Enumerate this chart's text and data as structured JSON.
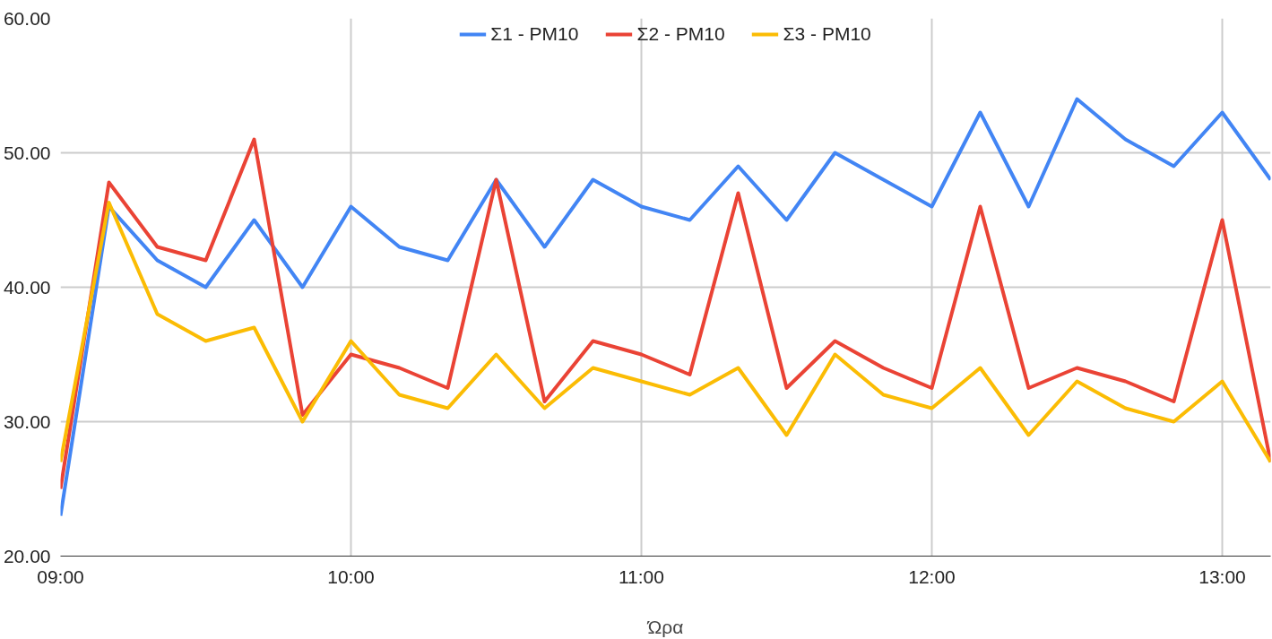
{
  "chart_data": {
    "type": "line",
    "xlabel": "Ώρα",
    "x": [
      9,
      9.1667,
      9.3333,
      9.5,
      9.6667,
      9.8333,
      10,
      10.1667,
      10.3333,
      10.5,
      10.6667,
      10.8333,
      11,
      11.1667,
      11.3333,
      11.5,
      11.6667,
      11.8333,
      12,
      12.1667,
      12.3333,
      12.5,
      12.6667,
      12.8333,
      13,
      13.1667
    ],
    "series": [
      {
        "name": "Σ1 - PM10",
        "color": "#4285f4",
        "values": [
          23,
          46,
          42,
          40,
          45,
          40,
          46,
          43,
          42,
          48,
          43,
          48,
          46,
          45,
          49,
          45,
          50,
          48,
          46,
          53,
          46,
          54,
          51,
          49,
          53,
          48
        ]
      },
      {
        "name": "Σ2 - PM10",
        "color": "#ea4335",
        "values": [
          25,
          47.8,
          43,
          42,
          51,
          30.5,
          35,
          34,
          32.5,
          48,
          31.5,
          36,
          35,
          33.5,
          47,
          32.5,
          36,
          34,
          32.5,
          46,
          32.5,
          34,
          33,
          31.5,
          45,
          27
        ]
      },
      {
        "name": "Σ3 - PM10",
        "color": "#fbbc04",
        "values": [
          27,
          46.3,
          38,
          36,
          37,
          30,
          36,
          32,
          31,
          35,
          31,
          34,
          33,
          32,
          34,
          29,
          35,
          32,
          31,
          34,
          29,
          33,
          31,
          30,
          33,
          27
        ]
      }
    ],
    "xlim": [
      9,
      13.1667
    ],
    "ylim": [
      20,
      60
    ],
    "xticks": [
      {
        "value": 9,
        "label": "09:00"
      },
      {
        "value": 10,
        "label": "10:00"
      },
      {
        "value": 11,
        "label": "11:00"
      },
      {
        "value": 12,
        "label": "12:00"
      },
      {
        "value": 13,
        "label": "13:00"
      }
    ],
    "yticks": [
      {
        "value": 20,
        "label": "20.00"
      },
      {
        "value": 30,
        "label": "30.00"
      },
      {
        "value": 40,
        "label": "40.00"
      },
      {
        "value": 50,
        "label": "50.00"
      },
      {
        "value": 60,
        "label": "60.00"
      }
    ],
    "grid": true,
    "legend": "top",
    "marker": "none",
    "line_style": "solid"
  }
}
